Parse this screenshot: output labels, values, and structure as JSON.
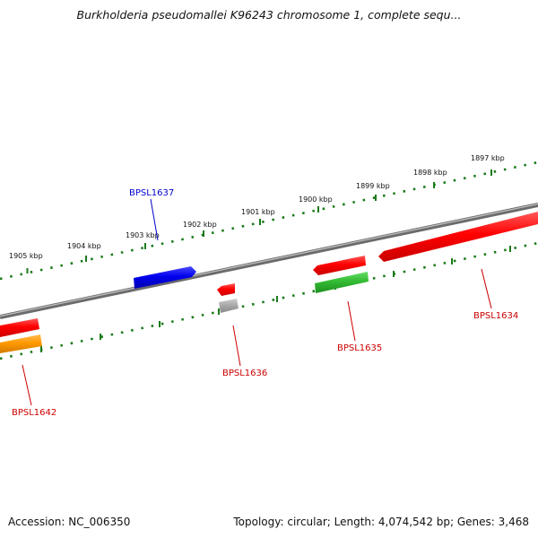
{
  "header": {
    "title": "Burkholderia pseudomallei K96243 chromosome 1, complete sequ..."
  },
  "footer": {
    "accession": "Accession: NC_006350",
    "summary": "Topology: circular; Length: 4,074,542 bp; Genes: 3,468"
  },
  "ruler": {
    "labels": [
      "1905 kbp",
      "1904 kbp",
      "1903 kbp",
      "1902 kbp",
      "1901 kbp",
      "1900 kbp",
      "1899 kbp",
      "1898 kbp",
      "1897 kbp"
    ]
  },
  "genes": {
    "BPSL1637": "BPSL1637",
    "BPSL1636": "BPSL1636",
    "BPSL1635": "BPSL1635",
    "BPSL1634": "BPSL1634",
    "BPSL1642": "BPSL1642"
  },
  "colors": {
    "forward_gene": "#ff0000",
    "reverse_gene": "#ff0000",
    "selected_gene": "#0000ee",
    "rna_gene": "#33bb33",
    "pseudo_gene": "#aaaaaa",
    "other_gene": "#ff9900",
    "backbone": "#808080",
    "ruler": "#1a7a1a",
    "label_forward": "#0000cc",
    "label_reverse": "#cc0000"
  }
}
